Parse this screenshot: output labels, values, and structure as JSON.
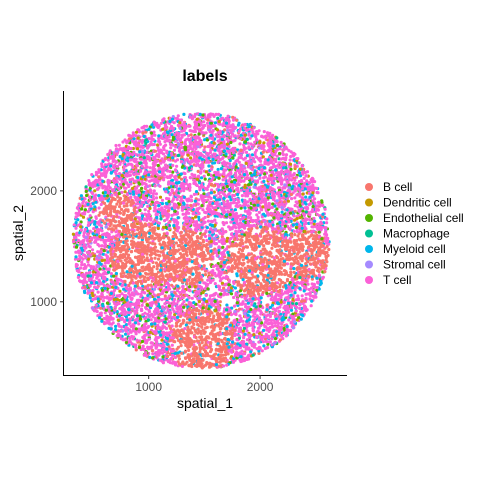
{
  "chart_data": {
    "type": "scatter",
    "title": "labels",
    "xlabel": "spatial_1",
    "ylabel": "spatial_2",
    "xlim": [
      240,
      2780
    ],
    "ylim": [
      340,
      2900
    ],
    "x_ticks": [
      1000,
      2000
    ],
    "x_tick_labels": [
      "1000",
      "2000"
    ],
    "y_ticks": [
      1000,
      2000
    ],
    "y_tick_labels": [
      "1000",
      "2000"
    ],
    "grid": false,
    "legend_position": "right",
    "shape": "circular tissue section, center approx (1470, 1550), radius approx 1150",
    "series": [
      {
        "name": "B cell",
        "color": "#F8766D"
      },
      {
        "name": "Dendritic cell",
        "color": "#C49A00"
      },
      {
        "name": "Endothelial cell",
        "color": "#53B400"
      },
      {
        "name": "Macrophage",
        "color": "#00C094"
      },
      {
        "name": "Myeloid cell",
        "color": "#00B6EB"
      },
      {
        "name": "Stromal cell",
        "color": "#A58AFF"
      },
      {
        "name": "T cell",
        "color": "#FB61D7"
      }
    ],
    "clusters": [
      {
        "label": "B cell",
        "center": [
          720,
          1800
        ],
        "radius": 170
      },
      {
        "label": "B cell",
        "center": [
          950,
          1420
        ],
        "radius": 300
      },
      {
        "label": "B cell",
        "center": [
          1330,
          1400
        ],
        "radius": 260
      },
      {
        "label": "B cell",
        "center": [
          2000,
          1360
        ],
        "radius": 320
      },
      {
        "label": "B cell",
        "center": [
          2400,
          1420
        ],
        "radius": 230
      },
      {
        "label": "B cell",
        "center": [
          1480,
          660
        ],
        "radius": 300
      }
    ]
  }
}
